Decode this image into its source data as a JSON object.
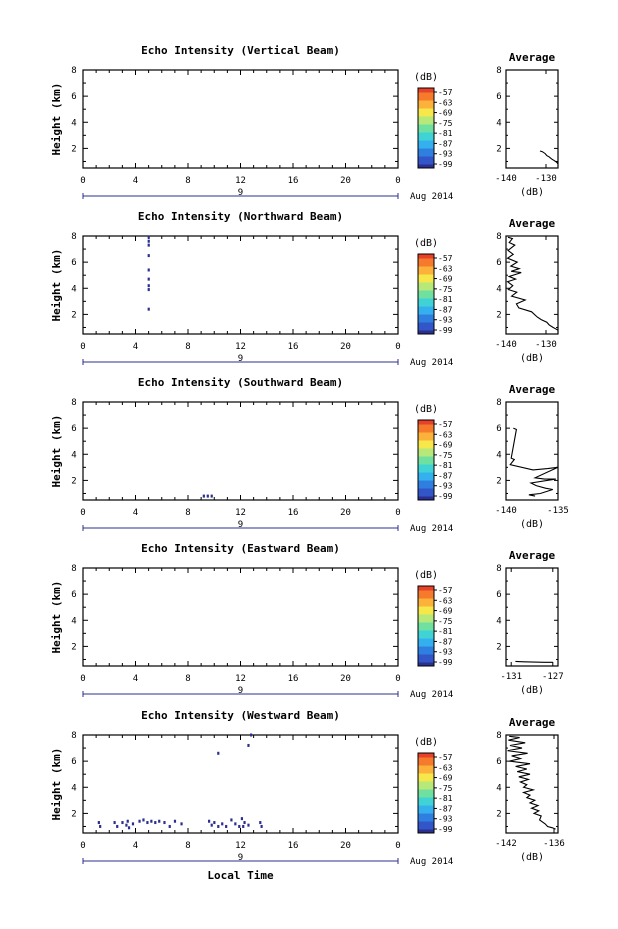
{
  "colors": {
    "colorbar": [
      "#2b2f8f",
      "#3256c8",
      "#2f7fe0",
      "#34b0ee",
      "#3fd3d6",
      "#6fe0a0",
      "#b6e87a",
      "#f6e84a",
      "#fcb23a",
      "#f57a2c",
      "#e8412a"
    ],
    "echo_mark": "#2b2f8f"
  },
  "shared": {
    "ylabel": "Height (km)",
    "date_label": "Aug 2014",
    "day_label": "9",
    "avg_title": "Average",
    "avg_xlabel": "(dB)",
    "colorbar_unit": "(dB)",
    "colorbar_ticks": [
      "-57",
      "-63",
      "-69",
      "-75",
      "-81",
      "-87",
      "-93",
      "-99"
    ],
    "x_tick_labels": [
      "0",
      "4",
      "8",
      "12",
      "16",
      "20",
      "0"
    ],
    "y_tick_labels": [
      "2",
      "4",
      "6",
      "8"
    ],
    "xlabel": "Local Time"
  },
  "chart_data": [
    {
      "type": "heatmap",
      "title": "Echo Intensity (Vertical Beam)",
      "xlim": [
        0,
        24
      ],
      "ylim": [
        0.5,
        8
      ],
      "cells": [],
      "average": {
        "xlim": [
          -140,
          -127
        ],
        "ticks": [
          -140,
          -130
        ],
        "tick_labels": [
          "-140",
          "-130"
        ],
        "profile": [
          [
            -131.5,
            1.8
          ],
          [
            -130.9,
            1.75
          ],
          [
            -130.2,
            1.6
          ],
          [
            -129.8,
            1.45
          ],
          [
            -129.2,
            1.35
          ],
          [
            -128.6,
            1.2
          ],
          [
            -128.1,
            1.1
          ],
          [
            -127.6,
            1.0
          ],
          [
            -127.2,
            0.9
          ],
          [
            -127,
            0.8
          ]
        ]
      }
    },
    {
      "type": "heatmap",
      "title": "Echo Intensity (Northward Beam)",
      "xlim": [
        0,
        24
      ],
      "ylim": [
        0.5,
        8
      ],
      "cells": [
        [
          5.0,
          7.9
        ],
        [
          5.0,
          7.6
        ],
        [
          5.0,
          7.3
        ],
        [
          5.0,
          6.5
        ],
        [
          5.0,
          5.4
        ],
        [
          5.0,
          4.7
        ],
        [
          5.0,
          4.2
        ],
        [
          5.0,
          3.9
        ],
        [
          5.0,
          2.4
        ]
      ],
      "average": {
        "xlim": [
          -140,
          -127
        ],
        "ticks": [
          -140,
          -130
        ],
        "tick_labels": [
          "-140",
          "-130"
        ],
        "profile": [
          [
            -139.5,
            7.9
          ],
          [
            -138.4,
            7.8
          ],
          [
            -139.2,
            7.5
          ],
          [
            -137.8,
            7.3
          ],
          [
            -139.5,
            6.9
          ],
          [
            -138.2,
            6.6
          ],
          [
            -139.6,
            6.3
          ],
          [
            -137.2,
            6.0
          ],
          [
            -138.8,
            5.7
          ],
          [
            -136.7,
            5.5
          ],
          [
            -138.7,
            5.3
          ],
          [
            -136.2,
            5.2
          ],
          [
            -139.2,
            4.9
          ],
          [
            -137.6,
            4.7
          ],
          [
            -139.6,
            4.5
          ],
          [
            -138.3,
            4.2
          ],
          [
            -139.4,
            3.9
          ],
          [
            -137.3,
            3.7
          ],
          [
            -138.6,
            3.4
          ],
          [
            -135.2,
            3.1
          ],
          [
            -137.4,
            2.8
          ],
          [
            -136.8,
            2.5
          ],
          [
            -133.6,
            2.2
          ],
          [
            -132.2,
            1.8
          ],
          [
            -131.2,
            1.6
          ],
          [
            -129.8,
            1.4
          ],
          [
            -129.2,
            1.2
          ],
          [
            -128.2,
            1.0
          ],
          [
            -127.6,
            0.9
          ],
          [
            -127,
            0.8
          ]
        ]
      }
    },
    {
      "type": "heatmap",
      "title": "Echo Intensity (Southward Beam)",
      "xlim": [
        0,
        24
      ],
      "ylim": [
        0.5,
        8
      ],
      "cells": [
        [
          9.2,
          0.8
        ],
        [
          9.5,
          0.8
        ],
        [
          9.8,
          0.8
        ]
      ],
      "average": {
        "xlim": [
          -140,
          -135
        ],
        "ticks": [
          -140,
          -135
        ],
        "tick_labels": [
          "-140",
          "-135"
        ],
        "profile": [
          [
            -139.3,
            6.0
          ],
          [
            -139.0,
            5.9
          ],
          [
            -139.5,
            3.7
          ],
          [
            -139.2,
            3.6
          ],
          [
            -139.4,
            3.4
          ],
          [
            -139.6,
            3.2
          ],
          [
            -137.4,
            2.8
          ],
          [
            -136.0,
            2.9
          ],
          [
            -135.0,
            3.0
          ],
          [
            -137.2,
            2.2
          ],
          [
            -136.3,
            2.1
          ],
          [
            -135.2,
            2.1
          ],
          [
            -137.6,
            1.8
          ],
          [
            -137.1,
            1.6
          ],
          [
            -136.2,
            1.4
          ],
          [
            -135.5,
            1.3
          ],
          [
            -136.7,
            1.0
          ],
          [
            -137.8,
            0.9
          ],
          [
            -137.2,
            0.8
          ]
        ]
      }
    },
    {
      "type": "heatmap",
      "title": "Echo Intensity (Eastward Beam)",
      "xlim": [
        0,
        24
      ],
      "ylim": [
        0.5,
        8
      ],
      "cells": [],
      "average": {
        "xlim": [
          -131.5,
          -126.5
        ],
        "ticks": [
          -131,
          -127
        ],
        "tick_labels": [
          "-131",
          "-127"
        ],
        "profile": [
          [
            -130.6,
            0.85
          ],
          [
            -129.8,
            0.82
          ],
          [
            -128.8,
            0.8
          ],
          [
            -127.8,
            0.78
          ],
          [
            -127.0,
            0.78
          ]
        ]
      }
    },
    {
      "type": "heatmap",
      "title": "Echo Intensity (Westward Beam)",
      "xlim": [
        0,
        24
      ],
      "ylim": [
        0.5,
        8
      ],
      "cells": [
        [
          10.3,
          6.6
        ],
        [
          12.6,
          7.2
        ],
        [
          12.8,
          8.0
        ],
        [
          1.2,
          1.3
        ],
        [
          1.3,
          1.0
        ],
        [
          2.4,
          1.3
        ],
        [
          2.6,
          1.0
        ],
        [
          3.0,
          1.3
        ],
        [
          3.3,
          1.1
        ],
        [
          3.4,
          1.4
        ],
        [
          3.5,
          0.9
        ],
        [
          3.8,
          1.2
        ],
        [
          4.3,
          1.4
        ],
        [
          4.6,
          1.5
        ],
        [
          4.9,
          1.3
        ],
        [
          5.2,
          1.4
        ],
        [
          5.5,
          1.3
        ],
        [
          5.8,
          1.4
        ],
        [
          6.2,
          1.3
        ],
        [
          6.6,
          1.0
        ],
        [
          7.0,
          1.4
        ],
        [
          7.5,
          1.2
        ],
        [
          9.6,
          1.4
        ],
        [
          9.8,
          1.1
        ],
        [
          10.0,
          1.3
        ],
        [
          10.3,
          1.0
        ],
        [
          10.6,
          1.2
        ],
        [
          10.9,
          1.0
        ],
        [
          11.3,
          1.5
        ],
        [
          11.6,
          1.2
        ],
        [
          11.9,
          1.0
        ],
        [
          12.1,
          1.6
        ],
        [
          12.3,
          1.3
        ],
        [
          12.2,
          1.0
        ],
        [
          12.6,
          1.1
        ],
        [
          13.5,
          1.3
        ],
        [
          13.6,
          1.0
        ]
      ],
      "average": {
        "xlim": [
          -142,
          -135.5
        ],
        "ticks": [
          -142,
          -136
        ],
        "tick_labels": [
          "-142",
          "-136"
        ],
        "profile": [
          [
            -141.6,
            7.9
          ],
          [
            -140.3,
            7.8
          ],
          [
            -141.7,
            7.6
          ],
          [
            -139.6,
            7.4
          ],
          [
            -141.5,
            7.2
          ],
          [
            -140.0,
            7.0
          ],
          [
            -141.8,
            6.8
          ],
          [
            -139.3,
            6.6
          ],
          [
            -141.3,
            6.4
          ],
          [
            -140.2,
            6.2
          ],
          [
            -141.6,
            6.0
          ],
          [
            -139.0,
            5.8
          ],
          [
            -140.8,
            5.6
          ],
          [
            -139.4,
            5.4
          ],
          [
            -140.6,
            5.2
          ],
          [
            -139.0,
            5.0
          ],
          [
            -140.4,
            4.8
          ],
          [
            -139.2,
            4.6
          ],
          [
            -140.2,
            4.4
          ],
          [
            -139.4,
            4.2
          ],
          [
            -139.8,
            4.0
          ],
          [
            -138.6,
            3.8
          ],
          [
            -139.8,
            3.6
          ],
          [
            -139.0,
            3.4
          ],
          [
            -139.4,
            3.2
          ],
          [
            -138.4,
            3.0
          ],
          [
            -139.0,
            2.8
          ],
          [
            -138.0,
            2.6
          ],
          [
            -138.8,
            2.4
          ],
          [
            -137.9,
            2.2
          ],
          [
            -138.5,
            2.0
          ],
          [
            -137.6,
            1.8
          ],
          [
            -137.8,
            1.5
          ],
          [
            -137.1,
            1.2
          ],
          [
            -136.8,
            1.0
          ],
          [
            -136.2,
            0.9
          ],
          [
            -135.8,
            0.8
          ]
        ]
      }
    }
  ]
}
